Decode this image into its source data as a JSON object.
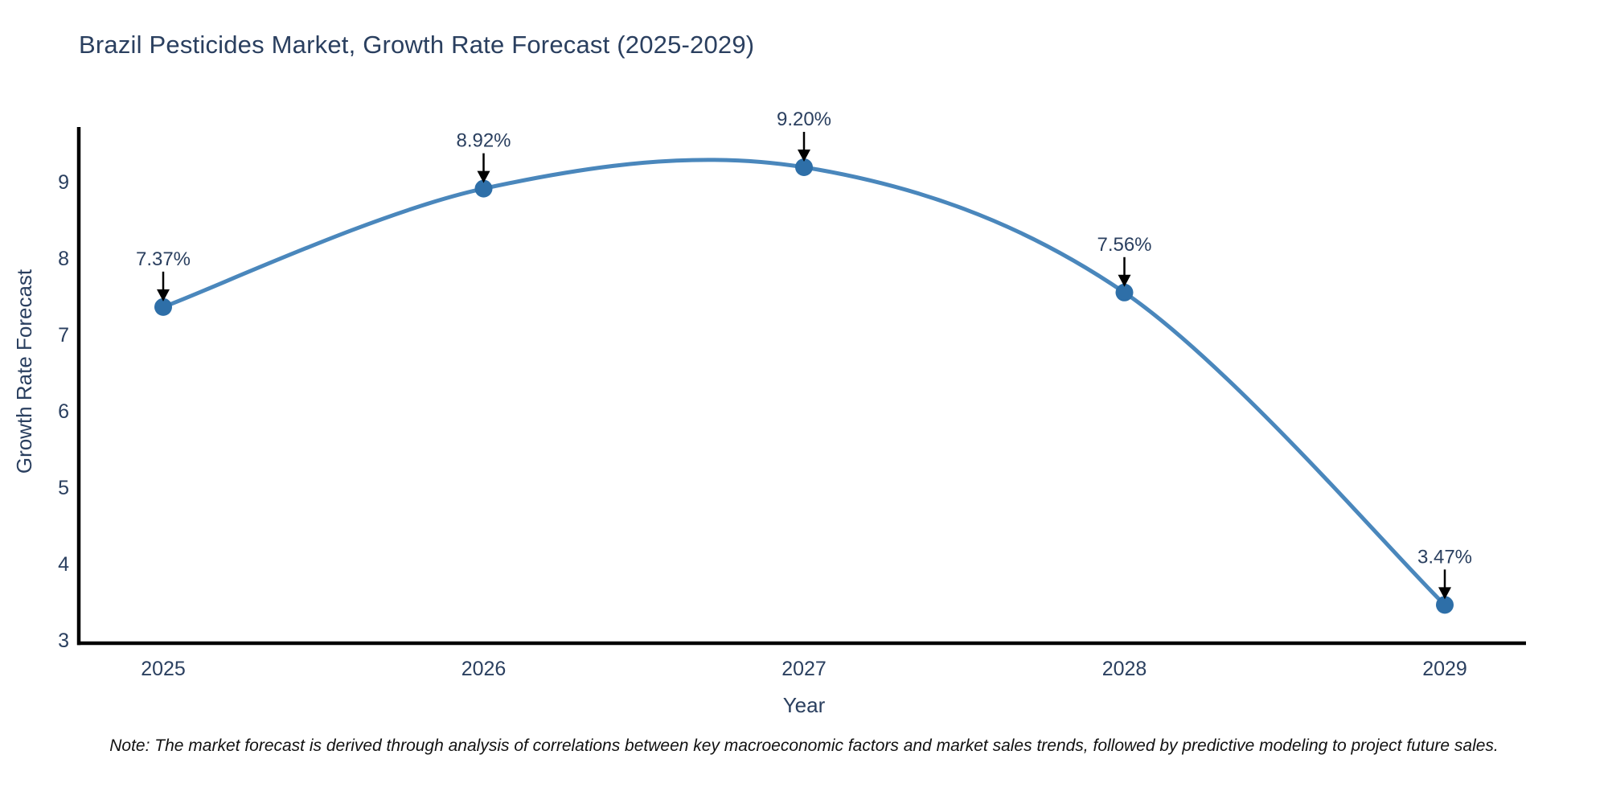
{
  "title": "Brazil Pesticides Market, Growth Rate Forecast (2025-2029)",
  "note": "Note: The market forecast is derived through analysis of correlations between key macroeconomic factors and market sales trends, followed by predictive modeling to project future sales.",
  "chart_data": {
    "type": "line",
    "title": "Brazil Pesticides Market, Growth Rate Forecast (2025-2029)",
    "xlabel": "Year",
    "ylabel": "Growth Rate Forecast",
    "x": [
      "2025",
      "2026",
      "2027",
      "2028",
      "2029"
    ],
    "values": [
      7.37,
      8.92,
      9.2,
      7.56,
      3.47
    ],
    "data_labels": [
      "7.37%",
      "8.92%",
      "9.20%",
      "7.56%",
      "3.47%"
    ],
    "yticks": [
      3,
      4,
      5,
      6,
      7,
      8,
      9
    ],
    "ylim": [
      3,
      9.7
    ],
    "line_shape": "spline",
    "grid": false,
    "legend": "none",
    "colors": {
      "line": "#4a87bc",
      "marker": "#2e6fa8",
      "axis": "#000000",
      "tick_text": "#2a3f5f",
      "annotation_text": "#2a3f5f",
      "arrow": "#000000"
    }
  }
}
